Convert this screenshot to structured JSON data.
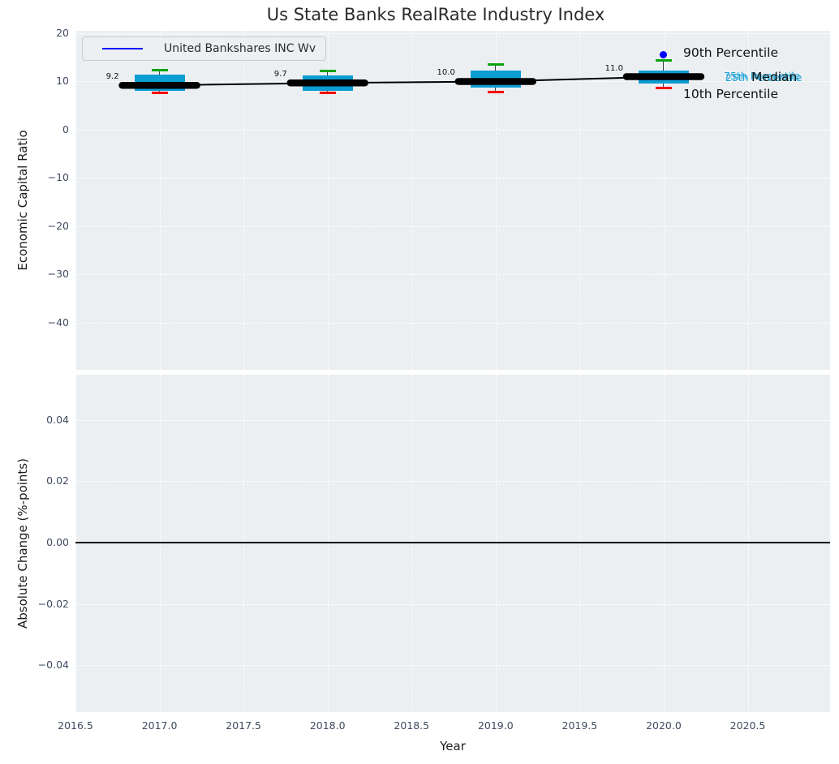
{
  "title": "Us State Banks RealRate Industry Index",
  "legend": {
    "label": "United Bankshares INC Wv"
  },
  "annotations": {
    "p90": "90th Percentile",
    "p75": "75th Percentile",
    "median": "Median",
    "p25": "25th Percentile",
    "p10": "10th Percentile"
  },
  "colors": {
    "box_fill": "#0c9dd3",
    "cap_90th": "#0ca30c",
    "cap_10th": "#f20000",
    "whisker": "#3f3f3f",
    "company_line": "#000000",
    "legend_line": "#0000ff",
    "marker_dot": "#0000ff",
    "percentile_label": "#1aa3d8",
    "axes_background": "#eceff1",
    "grid": "#ffffff",
    "zero_line": "#000000"
  },
  "chart_data": {
    "type": "boxplot",
    "title": "Us State Banks RealRate Industry Index",
    "x_axis": {
      "label": "Year",
      "xlim": [
        2016.5,
        2020.99
      ],
      "ticks": [
        2016.5,
        2017.0,
        2017.5,
        2018.0,
        2018.5,
        2019.0,
        2019.5,
        2020.0,
        2020.5
      ],
      "tick_labels": [
        "2016.5",
        "2017.0",
        "2017.5",
        "2018.0",
        "2018.5",
        "2019.0",
        "2019.5",
        "2020.0",
        "2020.5"
      ]
    },
    "panels": [
      {
        "name": "economic-capital-ratio",
        "ylabel": "Economic Capital Ratio",
        "ylim": [
          -49.75,
          20.5
        ],
        "yticks": [
          20,
          10,
          0,
          -10,
          -20,
          -30,
          -40
        ],
        "ytick_labels": [
          "20",
          "10",
          "0",
          "−10",
          "−20",
          "−30",
          "−40"
        ],
        "grid": true,
        "boxes": [
          {
            "year": 2017,
            "p10": 7.7,
            "p25": 8.1,
            "median": 9.2,
            "p75": 11.5,
            "p90": 12.5,
            "label": "9.2"
          },
          {
            "year": 2018,
            "p10": 7.8,
            "p25": 8.1,
            "median": 9.7,
            "p75": 11.2,
            "p90": 12.3,
            "label": "9.7"
          },
          {
            "year": 2019,
            "p10": 7.9,
            "p25": 8.7,
            "median": 10.0,
            "p75": 12.3,
            "p90": 13.6,
            "label": "10.0"
          },
          {
            "year": 2020,
            "p10": 8.7,
            "p25": 9.5,
            "median": 11.0,
            "p75": 12.3,
            "p90": 14.4,
            "label": "11.0"
          }
        ],
        "company_series": {
          "name": "United Bankshares INC Wv",
          "x": [
            2017,
            2018,
            2019,
            2020
          ],
          "y": [
            9.2,
            9.7,
            10.0,
            11.0
          ]
        },
        "marker_dot": {
          "x": 2020,
          "y": 15.5
        }
      },
      {
        "name": "absolute-change",
        "ylabel": "Absolute Change (%-points)",
        "ylim": [
          -0.0553,
          0.0548
        ],
        "yticks": [
          0.04,
          0.02,
          0.0,
          -0.02,
          -0.04
        ],
        "ytick_labels": [
          "0.04",
          "0.02",
          "0.00",
          "−0.02",
          "−0.04"
        ],
        "grid": true,
        "zero_line": 0.0
      }
    ]
  }
}
